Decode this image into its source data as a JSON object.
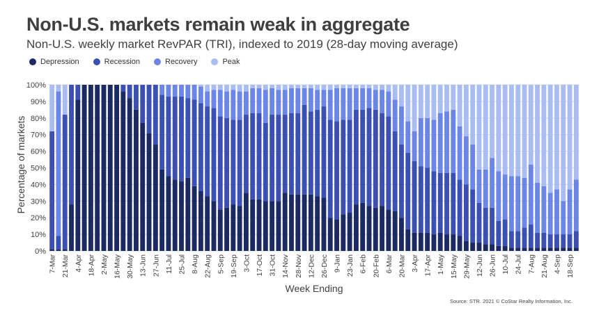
{
  "title": "Non-U.S. markets remain weak in aggregate",
  "subtitle": "Non-U.S. weekly market RevPAR (TRI), indexed to 2019 (28-day moving average)",
  "source": "Source: STR. 2021 © CoStar Realty Information, Inc.",
  "colors": {
    "depression": "#1c2a63",
    "recession": "#3c4fb3",
    "recovery": "#6c86e8",
    "peak": "#aabdf3",
    "grid": "#dadada",
    "text": "#3f3f3f"
  },
  "legend": [
    {
      "label": "Depression",
      "color": "#1c2a63"
    },
    {
      "label": "Recession",
      "color": "#3c4fb3"
    },
    {
      "label": "Recovery",
      "color": "#6c86e8"
    },
    {
      "label": "Peak",
      "color": "#aabdf3"
    }
  ],
  "chart_data": {
    "type": "bar",
    "stacked": true,
    "xlabel": "Week Ending",
    "ylabel": "Percentage of markets",
    "ylim": [
      0,
      100
    ],
    "yticks": [
      "0%",
      "10%",
      "20%",
      "30%",
      "40%",
      "50%",
      "60%",
      "70%",
      "80%",
      "90%",
      "100%"
    ],
    "grid": true,
    "legend_position": "top-left",
    "x_tick_labels": [
      "7-Mar",
      "21-Mar",
      "4-Apr",
      "18-Apr",
      "2-May",
      "16-May",
      "30-May",
      "13-Jun",
      "27-Jun",
      "11-Jul",
      "25-Jul",
      "8-Aug",
      "22-Aug",
      "5-Sep",
      "19-Sep",
      "3-Oct",
      "17-Oct",
      "31-Oct",
      "14-Nov",
      "28-Nov",
      "12-Dec",
      "26-Dec",
      "9-Jan",
      "23-Jan",
      "6-Feb",
      "20-Feb",
      "6-Mar",
      "20-Mar",
      "3-Apr",
      "17-Apr",
      "1-May",
      "15-May",
      "29-May",
      "12-Jun",
      "26-Jun",
      "10-Jul",
      "24-Jul",
      "7-Aug",
      "21-Aug",
      "4-Sep",
      "18-Sep"
    ],
    "series": [
      {
        "name": "Depression",
        "values": [
          1,
          1,
          1,
          28,
          91,
          100,
          100,
          100,
          100,
          100,
          100,
          96,
          92,
          85,
          77,
          71,
          64,
          49,
          45,
          43,
          42,
          44,
          39,
          36,
          33,
          30,
          25,
          26,
          28,
          27,
          35,
          31,
          31,
          30,
          30,
          30,
          35,
          34,
          34,
          34,
          34,
          33,
          32,
          20,
          19,
          22,
          23,
          28,
          29,
          27,
          26,
          27,
          25,
          24,
          20,
          13,
          11,
          11,
          11,
          10,
          11,
          10,
          10,
          9,
          6,
          5,
          5,
          4,
          4,
          3,
          3,
          2,
          2,
          2,
          2,
          2,
          2,
          2,
          2,
          2,
          2,
          2
        ]
      },
      {
        "name": "Recession",
        "values": [
          71,
          8,
          81,
          72,
          9,
          0,
          0,
          0,
          0,
          0,
          0,
          4,
          8,
          15,
          23,
          29,
          36,
          45,
          48,
          50,
          51,
          48,
          52,
          53,
          54,
          56,
          56,
          54,
          51,
          52,
          47,
          52,
          52,
          47,
          52,
          52,
          47,
          49,
          49,
          54,
          50,
          52,
          55,
          59,
          59,
          57,
          56,
          57,
          56,
          59,
          59,
          56,
          56,
          48,
          44,
          46,
          43,
          40,
          39,
          38,
          36,
          37,
          37,
          34,
          34,
          32,
          24,
          22,
          22,
          15,
          16,
          10,
          10,
          12,
          14,
          9,
          9,
          8,
          8,
          8,
          8,
          10
        ]
      },
      {
        "name": "Recovery",
        "values": [
          0,
          87,
          0,
          0,
          0,
          0,
          0,
          0,
          0,
          0,
          0,
          0,
          0,
          0,
          0,
          0,
          0,
          6,
          7,
          7,
          7,
          8,
          9,
          10,
          9,
          11,
          16,
          16,
          18,
          17,
          14,
          15,
          15,
          20,
          16,
          15,
          15,
          15,
          15,
          10,
          14,
          12,
          10,
          18,
          20,
          19,
          19,
          13,
          13,
          12,
          12,
          14,
          15,
          19,
          23,
          19,
          18,
          29,
          30,
          31,
          36,
          37,
          38,
          32,
          29,
          27,
          20,
          23,
          30,
          30,
          27,
          33,
          33,
          30,
          36,
          30,
          28,
          25,
          27,
          20,
          27,
          31
        ]
      },
      {
        "name": "Peak",
        "values": [
          28,
          4,
          18,
          0,
          0,
          0,
          0,
          0,
          0,
          0,
          0,
          0,
          0,
          0,
          0,
          0,
          0,
          0,
          0,
          0,
          0,
          0,
          0,
          1,
          4,
          3,
          3,
          4,
          3,
          4,
          4,
          2,
          2,
          3,
          2,
          3,
          3,
          2,
          2,
          2,
          2,
          3,
          3,
          3,
          2,
          2,
          2,
          2,
          2,
          2,
          3,
          3,
          4,
          9,
          13,
          22,
          28,
          20,
          20,
          21,
          17,
          16,
          15,
          25,
          31,
          36,
          51,
          51,
          44,
          52,
          54,
          55,
          55,
          56,
          48,
          59,
          61,
          65,
          63,
          70,
          63,
          57
        ]
      }
    ]
  }
}
